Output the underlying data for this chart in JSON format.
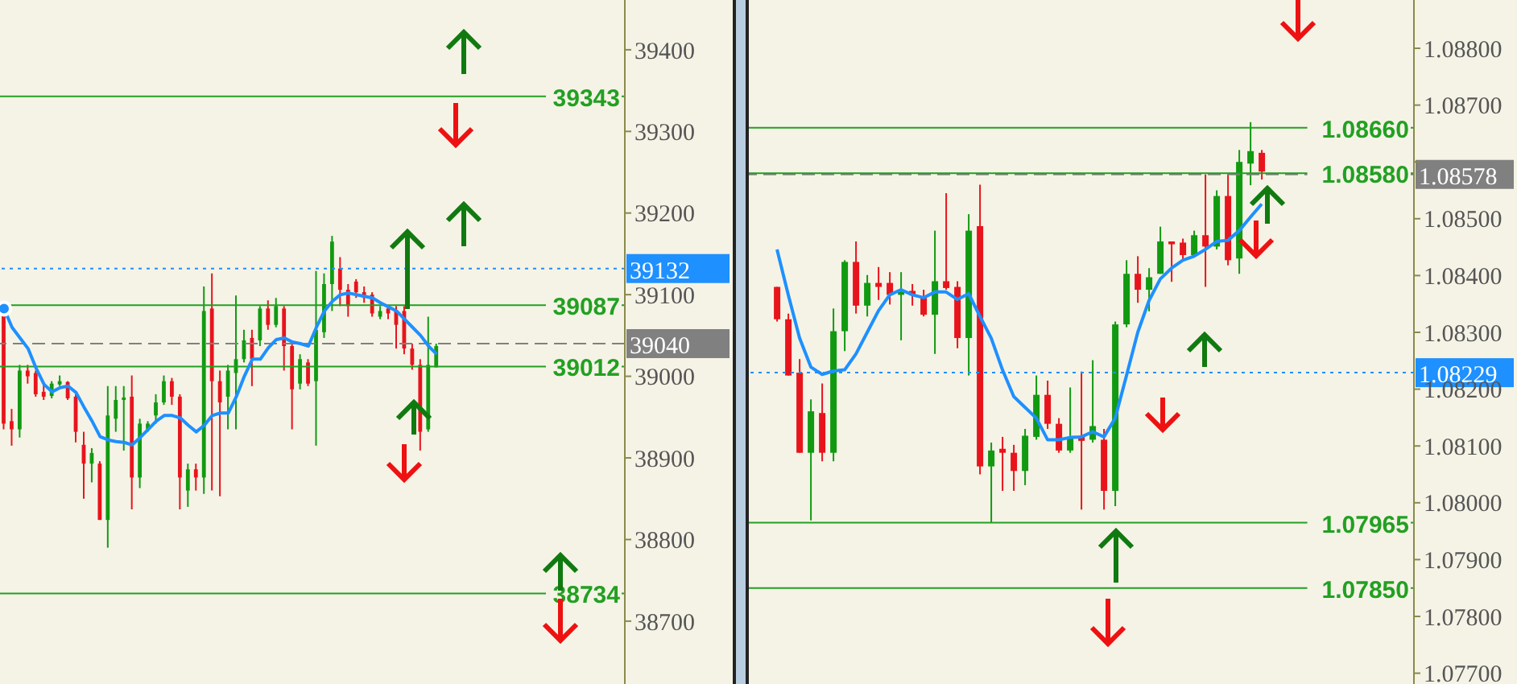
{
  "chart_data": [
    {
      "type": "candlestick",
      "tick_labels": "y",
      "categories": [
        null,
        null,
        null,
        null,
        null,
        null,
        null,
        null,
        null,
        null,
        null,
        null,
        null,
        null,
        null,
        null,
        null,
        null,
        null,
        null,
        null,
        null,
        null,
        null,
        null,
        null,
        null,
        null,
        null,
        null,
        null,
        null,
        null,
        null,
        null,
        null,
        null,
        null,
        null,
        null,
        null,
        null,
        null,
        null,
        null,
        null,
        null,
        null,
        null,
        null,
        null,
        null,
        null,
        null,
        null,
        null,
        null,
        null,
        null,
        null,
        null,
        null,
        null,
        null,
        null,
        null,
        null,
        null,
        null,
        null,
        null,
        null,
        null,
        null,
        null,
        null,
        null,
        null
      ],
      "ohlc": [
        [
          39077,
          39077,
          38935,
          38942
        ],
        [
          38945,
          38960,
          38915,
          38935
        ],
        [
          38935,
          39014,
          38925,
          39007
        ],
        [
          39007,
          39014,
          38991,
          39000
        ],
        [
          39004,
          39007,
          38975,
          38978
        ],
        [
          38981,
          38991,
          38971,
          38975
        ],
        [
          38976,
          38994,
          38973,
          38991
        ],
        [
          38990,
          39001,
          38988,
          38994
        ],
        [
          38993,
          38994,
          38971,
          38973
        ],
        [
          38975,
          38978,
          38919,
          38932
        ],
        [
          38916,
          38932,
          38850,
          38893
        ],
        [
          38893,
          38912,
          38870,
          38906
        ],
        [
          38893,
          38896,
          38824,
          38824
        ],
        [
          38824,
          38988,
          38790,
          38952
        ],
        [
          38948,
          38988,
          38932,
          38971
        ],
        [
          38971,
          38988,
          38909,
          38974
        ],
        [
          38975,
          39001,
          38837,
          38876
        ],
        [
          38876,
          38948,
          38863,
          38942
        ],
        [
          38935,
          38945,
          38932,
          38942
        ],
        [
          38952,
          38978,
          38942,
          38968
        ],
        [
          38968,
          39001,
          38965,
          38994
        ],
        [
          38994,
          38998,
          38965,
          38975
        ],
        [
          38975,
          38978,
          38837,
          38876
        ],
        [
          38860,
          38893,
          38840,
          38886
        ],
        [
          38886,
          38893,
          38860,
          38876
        ],
        [
          38876,
          39110,
          38856,
          39080
        ],
        [
          39083,
          39126,
          38860,
          38994
        ],
        [
          38994,
          39007,
          38853,
          38968
        ],
        [
          38975,
          39014,
          38935,
          39007
        ],
        [
          39004,
          39099,
          38935,
          39021
        ],
        [
          39021,
          39057,
          39017,
          39044
        ],
        [
          39047,
          39057,
          38988,
          39021
        ],
        [
          39044,
          39086,
          39037,
          39083
        ],
        [
          39083,
          39093,
          39057,
          39063
        ],
        [
          39063,
          39096,
          39060,
          39086
        ],
        [
          39083,
          39086,
          39007,
          39037
        ],
        [
          39037,
          39040,
          38935,
          38984
        ],
        [
          38991,
          39027,
          38984,
          39021
        ],
        [
          39017,
          39021,
          38988,
          38991
        ],
        [
          38994,
          39129,
          38915,
          39057
        ],
        [
          39054,
          39126,
          39047,
          39113
        ],
        [
          39113,
          39172,
          39080,
          39165
        ],
        [
          39132,
          39146,
          39086,
          39106
        ],
        [
          39106,
          39113,
          39073,
          39086
        ],
        [
          39116,
          39119,
          39096,
          39103
        ],
        [
          39103,
          39110,
          39090,
          39096
        ],
        [
          39100,
          39103,
          39073,
          39077
        ],
        [
          39073,
          39086,
          39070,
          39080
        ],
        [
          39083,
          39086,
          39070,
          39077
        ],
        [
          39080,
          39086,
          39034,
          39063
        ],
        [
          39080,
          39086,
          39027,
          39034
        ],
        [
          39034,
          39040,
          39008,
          39014
        ],
        [
          39014,
          39021,
          38909,
          38932
        ],
        [
          38935,
          39073,
          38932,
          39014
        ],
        [
          39011,
          39040,
          39011,
          39037
        ],
        null,
        null,
        null,
        null,
        null,
        null,
        null,
        null,
        null,
        null,
        null,
        null,
        null,
        null,
        null,
        null,
        null,
        null,
        null,
        null,
        null,
        null,
        null
      ],
      "series": [
        {
          "type": "line",
          "color": "#1e90ff",
          "values": [
            39083,
            39060,
            39047,
            39034,
            39010,
            38990,
            38981,
            38986,
            38988,
            38980,
            38962,
            38945,
            38926,
            38922,
            38920,
            38919,
            38916,
            38925,
            38935,
            38945,
            38952,
            38952,
            38949,
            38940,
            38932,
            38940,
            38952,
            38955,
            38955,
            38975,
            39000,
            39021,
            39021,
            39035,
            39045,
            39047,
            39042,
            39040,
            39037,
            39060,
            39080,
            39092,
            39100,
            39102,
            39100,
            39098,
            39096,
            39090,
            39085,
            39080,
            39070,
            39060,
            39050,
            39037,
            39027,
            null,
            null,
            null,
            null,
            null,
            null,
            null,
            null,
            null,
            null,
            null,
            null,
            null,
            null,
            null,
            null,
            null,
            null,
            null,
            null,
            null,
            null,
            null
          ]
        }
      ],
      "ylim": [
        38623,
        39461
      ],
      "yticks": [
        39400,
        39300,
        39200,
        39100,
        39000,
        38900,
        38800,
        38700
      ],
      "ref_lines": [
        {
          "axis": "y",
          "value": 39343,
          "label": "39343",
          "color": "#22a022",
          "line_style": "solid"
        },
        {
          "axis": "y",
          "value": 39087,
          "label": "39087",
          "color": "#22a022",
          "line_style": "solid"
        },
        {
          "axis": "y",
          "value": 39012,
          "label": "39012",
          "color": "#22a022",
          "line_style": "solid"
        },
        {
          "axis": "y",
          "value": 38734,
          "label": "38734",
          "color": "#22a022",
          "line_style": "solid"
        },
        {
          "axis": "y",
          "value": 39040,
          "label": "39040",
          "color": "#808080",
          "line_style": "dashed"
        },
        {
          "axis": "y",
          "value": 39132,
          "label": "39132",
          "color": "#1e90ff",
          "line_style": "dotted"
        }
      ]
    },
    {
      "type": "candlestick",
      "tick_labels": "y",
      "categories": [
        null,
        null,
        null,
        null,
        null,
        null,
        null,
        null,
        null,
        null,
        null,
        null,
        null,
        null,
        null,
        null,
        null,
        null,
        null,
        null,
        null,
        null,
        null,
        null,
        null,
        null,
        null,
        null,
        null,
        null,
        null,
        null,
        null,
        null,
        null,
        null,
        null,
        null,
        null,
        null,
        null,
        null,
        null,
        null,
        null,
        null,
        null,
        null,
        null,
        null,
        null,
        null,
        null,
        null,
        null,
        null,
        null,
        null,
        null
      ],
      "ohlc": [
        null,
        null,
        [
          1.0838,
          1.0838,
          1.08319,
          1.08323
        ],
        [
          1.08323,
          1.08333,
          1.08224,
          1.08224
        ],
        [
          1.08229,
          1.08253,
          1.08088,
          1.08088
        ],
        [
          1.08088,
          1.08182,
          1.07969,
          1.08161
        ],
        [
          1.08158,
          1.0821,
          1.08073,
          1.08088
        ],
        [
          1.08088,
          1.08342,
          1.08073,
          1.08302
        ],
        [
          1.08302,
          1.08427,
          1.08267,
          1.08424
        ],
        [
          1.08424,
          1.0846,
          1.08333,
          1.08347
        ],
        [
          1.08347,
          1.08401,
          1.08328,
          1.08387
        ],
        [
          1.08387,
          1.08415,
          1.08357,
          1.0838
        ],
        [
          1.08387,
          1.08406,
          1.08349,
          1.08366
        ],
        [
          1.08366,
          1.08406,
          1.08286,
          1.08371
        ],
        [
          1.08373,
          1.08385,
          1.08347,
          1.08366
        ],
        [
          1.08361,
          1.08375,
          1.08328,
          1.08331
        ],
        [
          1.08331,
          1.08479,
          1.08262,
          1.0839
        ],
        [
          1.0839,
          1.08545,
          1.08375,
          1.08378
        ],
        [
          1.0838,
          1.0839,
          1.08272,
          1.0829
        ],
        [
          1.0829,
          1.08508,
          1.08224,
          1.08479
        ],
        [
          1.08487,
          1.0856,
          1.0805,
          1.08064
        ],
        [
          1.08064,
          1.08106,
          1.07965,
          1.08092
        ],
        [
          1.08095,
          1.08116,
          1.08021,
          1.08088
        ],
        [
          1.08088,
          1.08102,
          1.08021,
          1.08056
        ],
        [
          1.08056,
          1.0813,
          1.08031,
          1.08118
        ],
        [
          1.08116,
          1.08224,
          1.08111,
          1.0819
        ],
        [
          1.0819,
          1.08215,
          1.0813,
          1.08139
        ],
        [
          1.08139,
          1.08149,
          1.08088,
          1.08092
        ],
        [
          1.08092,
          1.08203,
          1.08088,
          1.08116
        ],
        [
          1.08118,
          1.08231,
          1.07988,
          1.08109
        ],
        [
          1.08111,
          1.08251,
          1.08106,
          1.08135
        ],
        [
          1.08111,
          1.0813,
          1.07988,
          1.08021
        ],
        [
          1.08021,
          1.08319,
          1.07994,
          1.08314
        ],
        [
          1.08314,
          1.08427,
          1.08309,
          1.08403
        ],
        [
          1.08403,
          1.08434,
          1.08352,
          1.08375
        ],
        [
          1.08375,
          1.08413,
          1.08337,
          1.08397
        ],
        [
          1.08403,
          1.08486,
          1.08403,
          1.0846
        ],
        [
          1.0846,
          1.0846,
          1.08389,
          1.08455
        ],
        [
          1.08458,
          1.08465,
          1.08427,
          1.08436
        ],
        [
          1.08436,
          1.08479,
          1.08432,
          1.08471
        ],
        [
          1.08471,
          1.08578,
          1.0838,
          1.08451
        ],
        [
          1.08451,
          1.0855,
          1.08446,
          1.0854
        ],
        [
          1.0854,
          1.08578,
          1.08418,
          1.08427
        ],
        [
          1.0843,
          1.08621,
          1.08403,
          1.086
        ],
        [
          1.08597,
          1.0867,
          1.08559,
          1.08619
        ],
        [
          1.08616,
          1.08621,
          1.08569,
          1.08583
        ],
        null,
        null,
        null,
        null,
        null,
        null,
        null,
        null,
        null,
        null,
        null,
        null,
        null
      ],
      "series": [
        {
          "type": "line",
          "color": "#1e90ff",
          "values": [
            null,
            null,
            1.08446,
            1.08366,
            1.0829,
            1.08239,
            1.08226,
            1.08232,
            1.08234,
            1.08262,
            1.083,
            1.08338,
            1.08366,
            1.08375,
            1.08366,
            1.08361,
            1.08371,
            1.08371,
            1.08358,
            1.08368,
            1.08328,
            1.0829,
            1.08234,
            1.08187,
            1.08168,
            1.08149,
            1.08111,
            1.08111,
            1.08115,
            1.08116,
            1.08125,
            1.08116,
            1.08149,
            1.08224,
            1.083,
            1.08356,
            1.08394,
            1.08413,
            1.08427,
            1.08434,
            1.08446,
            1.0846,
            1.08462,
            1.08479,
            1.08503,
            1.08526,
            null,
            null,
            null,
            null,
            null,
            null,
            null,
            null,
            null,
            null,
            null,
            null,
            null
          ]
        }
      ],
      "ylim": [
        1.07681,
        1.08885
      ],
      "yticks": [
        {
          "value": 1.088,
          "label": "1.08800"
        },
        {
          "value": 1.087,
          "label": "1.08700"
        },
        {
          "value": 1.086,
          "label": null
        },
        {
          "value": 1.085,
          "label": "1.08500"
        },
        {
          "value": 1.084,
          "label": "1.08400"
        },
        {
          "value": 1.083,
          "label": "1.08300"
        },
        {
          "value": 1.082,
          "label": "1.08200"
        },
        {
          "value": 1.081,
          "label": "1.08100"
        },
        {
          "value": 1.08,
          "label": "1.08000"
        },
        {
          "value": 1.079,
          "label": "1.07900"
        },
        {
          "value": 1.078,
          "label": "1.07800"
        },
        {
          "value": 1.077,
          "label": "1.07700"
        }
      ],
      "ref_lines": [
        {
          "axis": "y",
          "value": 1.0866,
          "label": "1.08660",
          "color": "#22a022",
          "line_style": "solid"
        },
        {
          "axis": "y",
          "value": 1.0858,
          "label": "1.08580",
          "color": "#22a022",
          "line_style": "solid"
        },
        {
          "axis": "y",
          "value": 1.07965,
          "label": "1.07965",
          "color": "#22a022",
          "line_style": "solid"
        },
        {
          "axis": "y",
          "value": 1.0785,
          "label": "1.07850",
          "color": "#22a022",
          "line_style": "solid"
        },
        {
          "axis": "y",
          "value": 1.08578,
          "label": "1.08578",
          "color": "#808080",
          "line_style": "dashed"
        },
        {
          "axis": "y",
          "value": 1.08229,
          "label": "1.08229",
          "color": "#1e90ff",
          "line_style": "dotted"
        }
      ]
    }
  ]
}
